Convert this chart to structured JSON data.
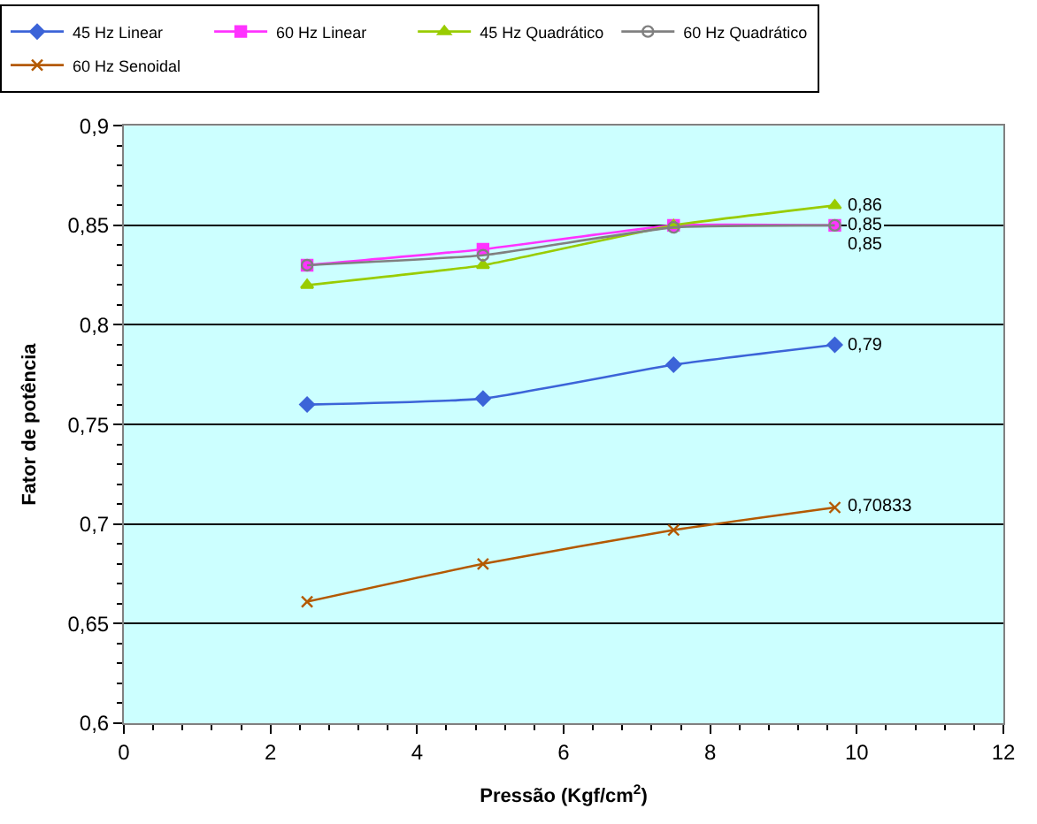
{
  "chart_data": {
    "type": "line",
    "xlabel": "Pressão (Kgf/cm$^{2}$)",
    "ylabel": "Fator de potência",
    "xlim": [
      0,
      12
    ],
    "xticks": [
      0,
      2,
      4,
      6,
      8,
      10,
      12
    ],
    "ylim": [
      0.6,
      0.9
    ],
    "yticks": [
      {
        "value": 0.6,
        "label": "0,6"
      },
      {
        "value": 0.65,
        "label": "0,65"
      },
      {
        "value": 0.7,
        "label": "0,7"
      },
      {
        "value": 0.75,
        "label": "0,75"
      },
      {
        "value": 0.8,
        "label": "0,8"
      },
      {
        "value": 0.85,
        "label": "0,85"
      },
      {
        "value": 0.9,
        "label": "0,9"
      }
    ],
    "grid": "y",
    "legend": "top",
    "series": [
      {
        "name": "45 Hz Linear",
        "color": "#3c64d8",
        "marker": "diamond",
        "x": [
          2.5,
          4.9,
          7.5,
          9.7
        ],
        "values": [
          0.76,
          0.763,
          0.78,
          0.79
        ],
        "value_labels": [
          null,
          null,
          null,
          "0,79"
        ]
      },
      {
        "name": "60 Hz Linear",
        "color": "#ff33ff",
        "marker": "square",
        "x": [
          2.5,
          4.9,
          7.5,
          9.7
        ],
        "values": [
          0.83,
          0.838,
          0.85,
          0.85
        ],
        "value_labels": [
          null,
          null,
          null,
          "0,85"
        ]
      },
      {
        "name": "45 Hz Quadrático",
        "color": "#99cc00",
        "marker": "triangle",
        "x": [
          2.5,
          4.9,
          7.5,
          9.7
        ],
        "values": [
          0.82,
          0.83,
          0.85,
          0.86
        ],
        "value_labels": [
          null,
          null,
          null,
          "0,86"
        ]
      },
      {
        "name": "60 Hz Quadrático",
        "color": "#808080",
        "marker": "circle",
        "x": [
          2.5,
          4.9,
          7.5,
          9.7
        ],
        "values": [
          0.83,
          0.835,
          0.849,
          0.85
        ],
        "value_labels": [
          null,
          null,
          null,
          "0,85"
        ]
      },
      {
        "name": "60 Hz Senoidal",
        "color": "#b35900",
        "marker": "cross",
        "x": [
          2.5,
          4.9,
          7.5,
          9.7
        ],
        "values": [
          0.661,
          0.68,
          0.697,
          0.70833
        ],
        "value_labels": [
          null,
          null,
          null,
          "0,70833"
        ]
      }
    ]
  }
}
